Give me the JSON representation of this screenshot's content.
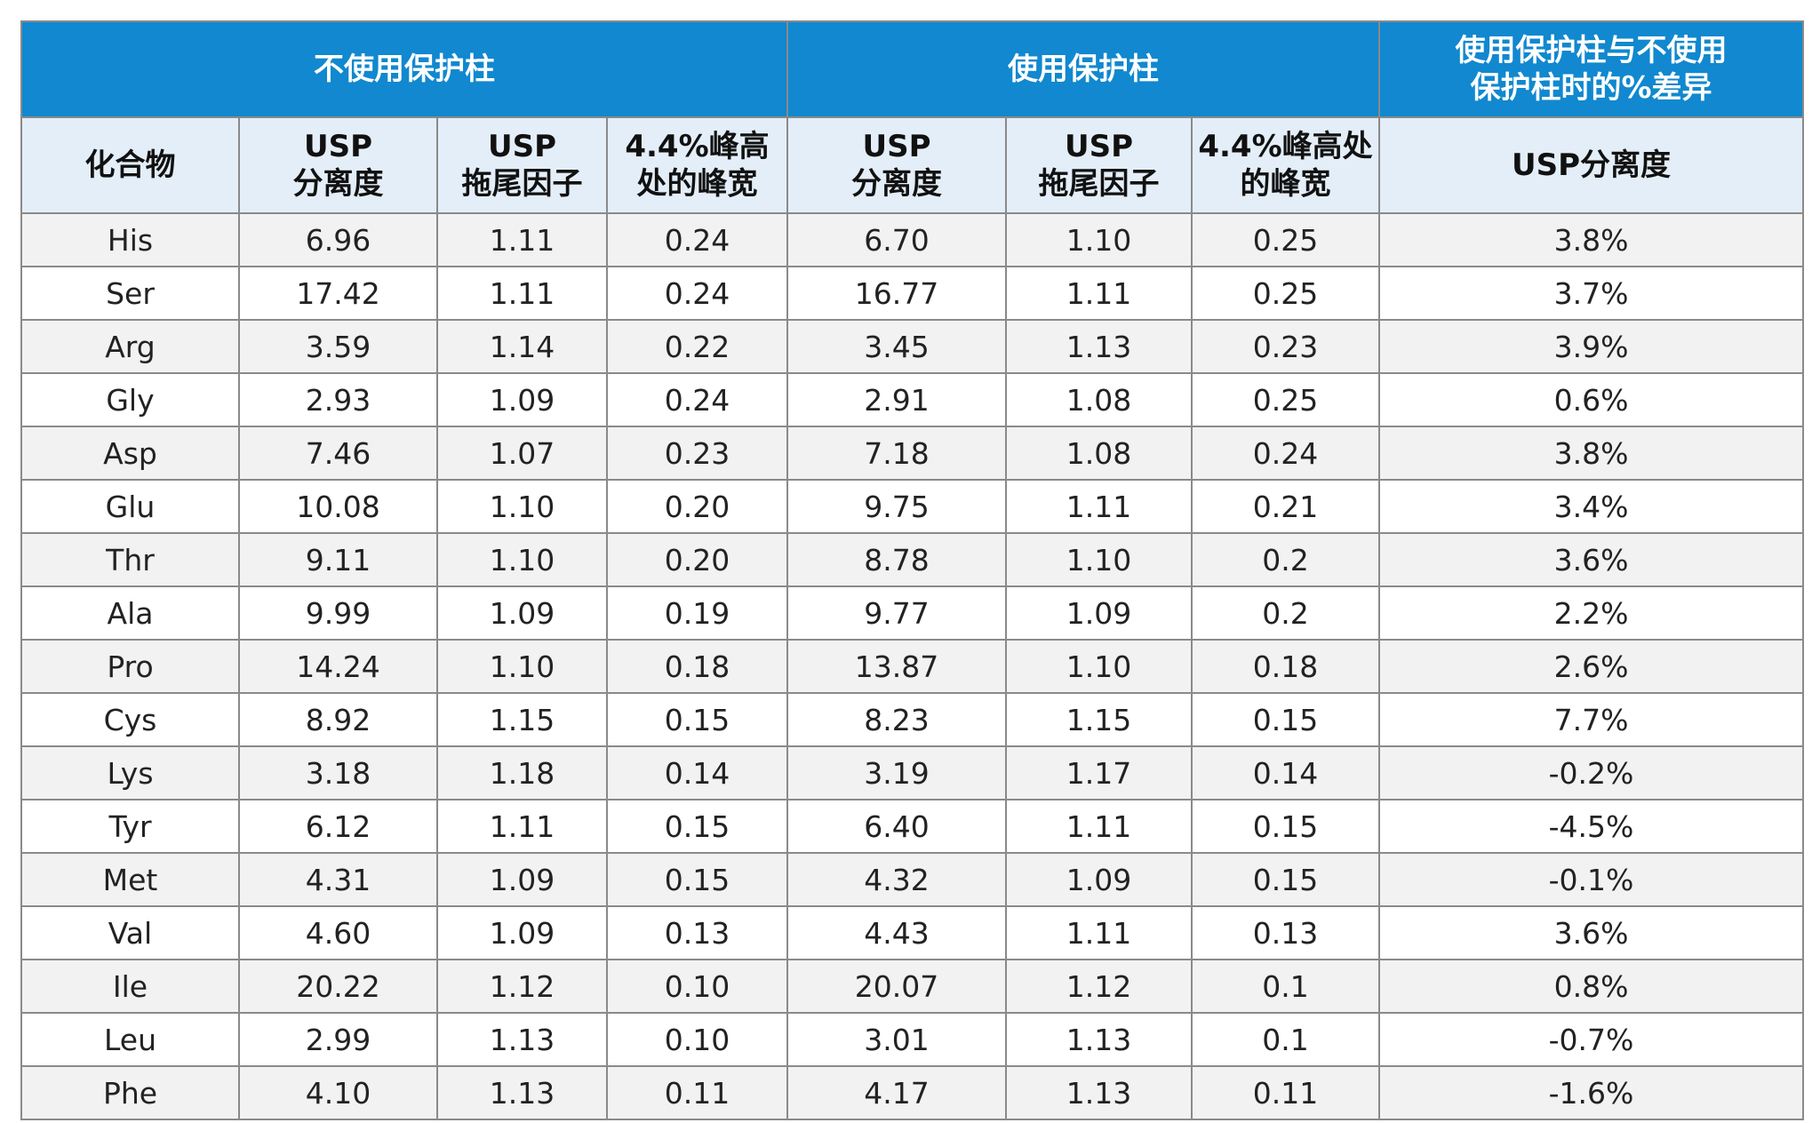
{
  "table": {
    "group_headers": [
      "不使用保护柱",
      "使用保护柱",
      "使用保护柱与不使用\n保护柱时的%差异"
    ],
    "columns": [
      "化合物",
      "USP\n分离度",
      "USP\n拖尾因子",
      "4.4%峰高\n处的峰宽",
      "USP\n分离度",
      "USP\n拖尾因子",
      "4.4%峰高处\n的峰宽",
      "USP分离度"
    ],
    "rows": [
      [
        "His",
        "6.96",
        "1.11",
        "0.24",
        "6.70",
        "1.10",
        "0.25",
        "3.8%"
      ],
      [
        "Ser",
        "17.42",
        "1.11",
        "0.24",
        "16.77",
        "1.11",
        "0.25",
        "3.7%"
      ],
      [
        "Arg",
        "3.59",
        "1.14",
        "0.22",
        "3.45",
        "1.13",
        "0.23",
        "3.9%"
      ],
      [
        "Gly",
        "2.93",
        "1.09",
        "0.24",
        "2.91",
        "1.08",
        "0.25",
        "0.6%"
      ],
      [
        "Asp",
        "7.46",
        "1.07",
        "0.23",
        "7.18",
        "1.08",
        "0.24",
        "3.8%"
      ],
      [
        "Glu",
        "10.08",
        "1.10",
        "0.20",
        "9.75",
        "1.11",
        "0.21",
        "3.4%"
      ],
      [
        "Thr",
        "9.11",
        "1.10",
        "0.20",
        "8.78",
        "1.10",
        "0.2",
        "3.6%"
      ],
      [
        "Ala",
        "9.99",
        "1.09",
        "0.19",
        "9.77",
        "1.09",
        "0.2",
        "2.2%"
      ],
      [
        "Pro",
        "14.24",
        "1.10",
        "0.18",
        "13.87",
        "1.10",
        "0.18",
        "2.6%"
      ],
      [
        "Cys",
        "8.92",
        "1.15",
        "0.15",
        "8.23",
        "1.15",
        "0.15",
        "7.7%"
      ],
      [
        "Lys",
        "3.18",
        "1.18",
        "0.14",
        "3.19",
        "1.17",
        "0.14",
        "-0.2%"
      ],
      [
        "Tyr",
        "6.12",
        "1.11",
        "0.15",
        "6.40",
        "1.11",
        "0.15",
        "-4.5%"
      ],
      [
        "Met",
        "4.31",
        "1.09",
        "0.15",
        "4.32",
        "1.09",
        "0.15",
        "-0.1%"
      ],
      [
        "Val",
        "4.60",
        "1.09",
        "0.13",
        "4.43",
        "1.11",
        "0.13",
        "3.6%"
      ],
      [
        "Ile",
        "20.22",
        "1.12",
        "0.10",
        "20.07",
        "1.12",
        "0.1",
        "0.8%"
      ],
      [
        "Leu",
        "2.99",
        "1.13",
        "0.10",
        "3.01",
        "1.13",
        "0.1",
        "-0.7%"
      ],
      [
        "Phe",
        "4.10",
        "1.13",
        "0.11",
        "4.17",
        "1.13",
        "0.11",
        "-1.6%"
      ]
    ]
  },
  "colors": {
    "group_header_bg": "#1188cf",
    "sub_header_bg": "#e4eef8",
    "row_alt_bg": "#f2f2f2"
  }
}
